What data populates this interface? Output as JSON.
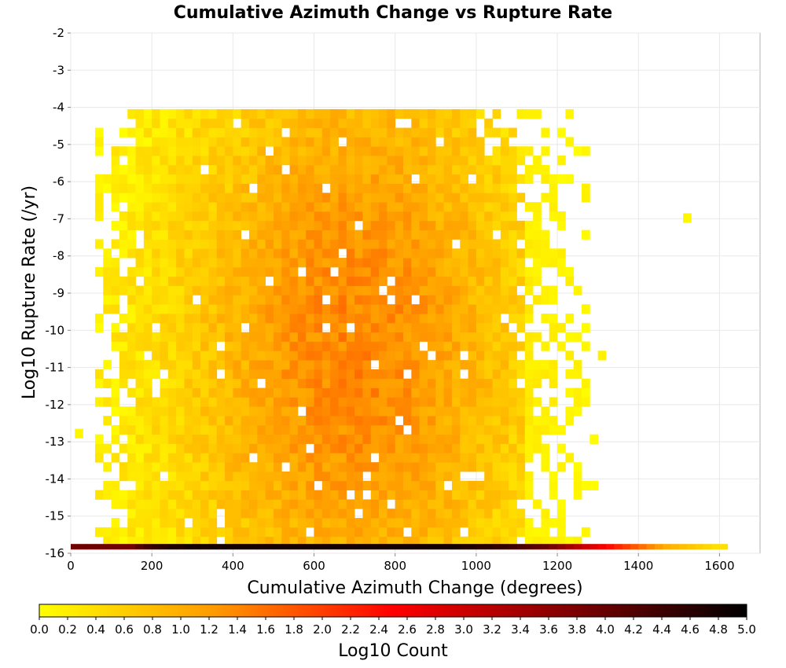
{
  "chart_data": {
    "type": "heatmap",
    "title": "Cumulative Azimuth Change vs Rupture Rate",
    "xlabel": "Cumulative Azimuth Change (degrees)",
    "ylabel": "Log10 Rupture Rate (/yr)",
    "xlim": [
      0,
      1700
    ],
    "ylim": [
      -16,
      -2
    ],
    "x_ticks": [
      0,
      200,
      400,
      600,
      800,
      1000,
      1200,
      1400,
      1600
    ],
    "y_ticks": [
      -2,
      -3,
      -4,
      -5,
      -6,
      -7,
      -8,
      -9,
      -10,
      -11,
      -12,
      -13,
      -14,
      -15,
      -16
    ],
    "grid": true,
    "bin_width_x": 20,
    "bin_height_y": 0.25,
    "colorbar": {
      "label": "Log10 Count",
      "range": [
        0,
        5
      ],
      "ticks": [
        "0.0",
        "0.2",
        "0.4",
        "0.6",
        "0.8",
        "1.0",
        "1.2",
        "1.4",
        "1.6",
        "1.8",
        "2.0",
        "2.2",
        "2.4",
        "2.6",
        "2.8",
        "3.0",
        "3.2",
        "3.4",
        "3.6",
        "3.8",
        "4.0",
        "4.2",
        "4.4",
        "4.6",
        "4.8",
        "5.0"
      ],
      "colors": [
        "#ffff00",
        "#ff9900",
        "#ff0000",
        "#800000",
        "#000000"
      ]
    },
    "bottom_row": {
      "y": -15.9,
      "x_start": 0,
      "x_end": 1620,
      "values": [
        3.9,
        3.9,
        3.9,
        3.9,
        3.9,
        3.9,
        3.9,
        3.9,
        4.2,
        4.4,
        4.5,
        4.6,
        4.7,
        4.7,
        4.8,
        4.8,
        4.8,
        4.8,
        4.8,
        4.8,
        4.8,
        4.8,
        4.8,
        4.8,
        4.8,
        4.8,
        4.8,
        4.8,
        4.8,
        4.8,
        4.8,
        4.8,
        4.8,
        4.8,
        4.8,
        4.8,
        4.8,
        4.8,
        4.8,
        4.8,
        4.8,
        4.8,
        4.8,
        4.8,
        4.8,
        4.8,
        4.8,
        4.8,
        4.7,
        4.7,
        4.6,
        4.6,
        4.5,
        4.5,
        4.4,
        4.3,
        4.2,
        4.1,
        4.0,
        3.8,
        3.6,
        3.4,
        3.2,
        3.0,
        2.8,
        2.6,
        2.4,
        2.2,
        2.0,
        1.8,
        1.6,
        1.4,
        1.2,
        1.0,
        0.9,
        0.8,
        0.7,
        0.6,
        0.5,
        0.4,
        0.4
      ]
    },
    "main_region": {
      "x_range": [
        60,
        1200
      ],
      "y_range": [
        -15.8,
        -4.2
      ],
      "peak_value": 1.4,
      "peak_x": 700,
      "peak_y": -10.5,
      "description": "dense band of counts between roughly 150 and 1100 degrees across rupture rates -15.8 to -4.2; sparse fringe out to ~1350 degrees"
    },
    "isolated_cells": [
      {
        "x": 1510,
        "y": -7.1,
        "value": 0.1
      },
      {
        "x": 10,
        "y": -12.9,
        "value": 0.1
      }
    ]
  }
}
